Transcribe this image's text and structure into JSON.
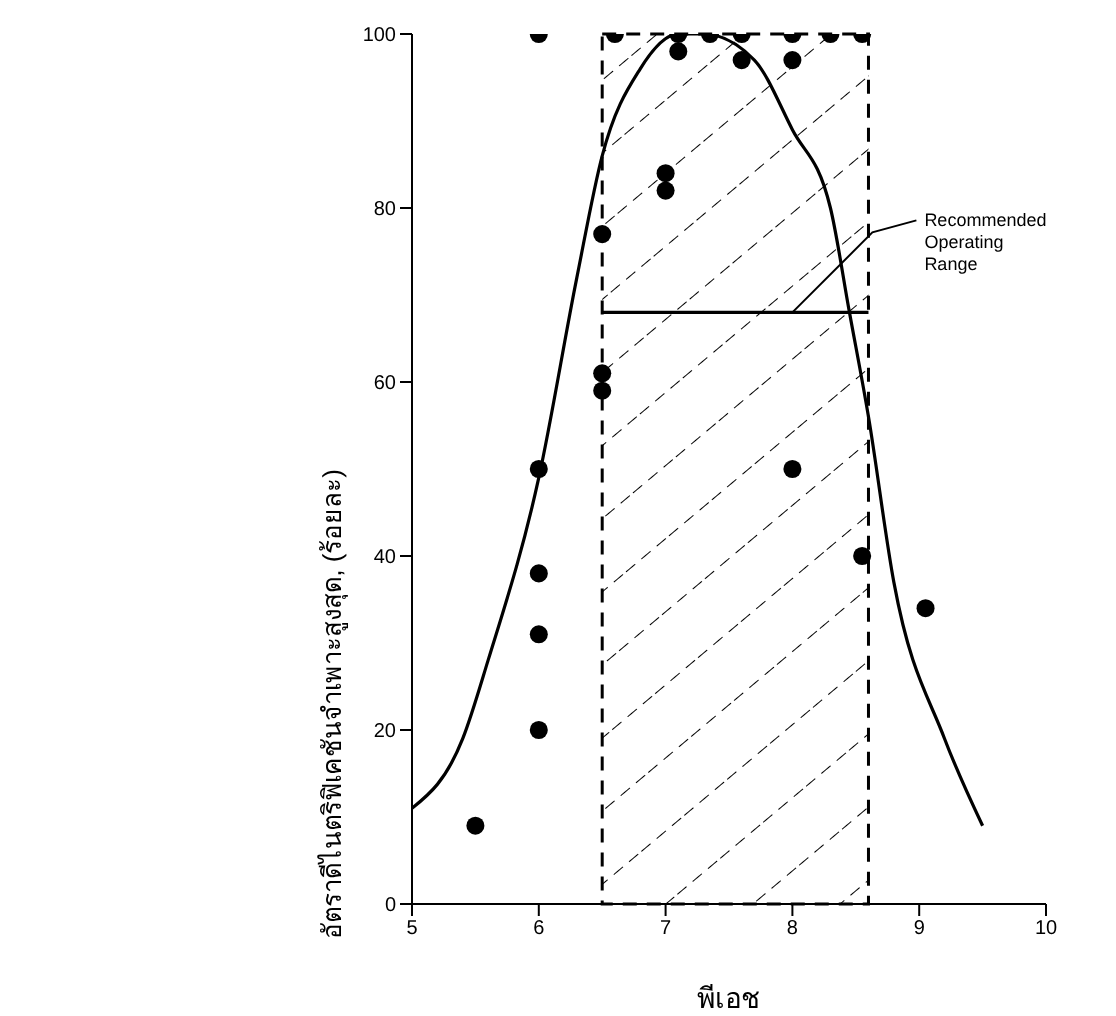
{
  "chart_data": {
    "type": "scatter",
    "xlabel": "พีเอช",
    "ylabel": "อัตราดีไนตริฟิเคชันจำเพาะสูงสุด, (ร้อยละ)",
    "xlim": [
      5,
      10
    ],
    "ylim": [
      0,
      100
    ],
    "xticks": [
      5,
      6,
      7,
      8,
      9,
      10
    ],
    "yticks": [
      0,
      20,
      40,
      60,
      80,
      100
    ],
    "series": [
      {
        "color": "#000000",
        "marker": "circle",
        "x": [
          5.5,
          6,
          6,
          6,
          6,
          6,
          6.5,
          6.5,
          6.5,
          6.6,
          7,
          7,
          7.1,
          7.1,
          7.35,
          7.6,
          7.6,
          8,
          8,
          8,
          8.3,
          8.55,
          8.55,
          9.05
        ],
        "values": [
          9,
          100,
          50,
          38,
          31,
          20,
          77,
          61,
          59,
          100,
          84,
          82,
          100,
          98,
          100,
          100,
          97,
          100,
          97,
          50,
          100,
          100,
          40,
          34
        ]
      },
      {
        "type": "line",
        "color": "#000000",
        "marker": "none",
        "line_style": "solid",
        "x": [
          5,
          5.4,
          5.6,
          6,
          6.3,
          6.5,
          6.8,
          7.1,
          7.3,
          7.7,
          8.0,
          8.3,
          8.45,
          8.6,
          8.8,
          9.2,
          9.5
        ],
        "values": [
          11,
          19,
          28,
          49,
          72,
          86,
          96,
          100,
          100,
          97,
          89,
          80,
          68,
          56,
          37,
          19,
          9
        ]
      },
      {
        "type": "line",
        "color": "#000000",
        "marker": "none",
        "line_style": "solid",
        "x": [
          6.5,
          8.6
        ],
        "values": [
          68,
          68
        ]
      }
    ],
    "bands": [
      {
        "axis": "x",
        "from": 6.5,
        "to": 8.6,
        "color": "#000000"
      }
    ],
    "annotations": [
      {
        "text": "Recommended Operating Range",
        "x": 8,
        "y": 68
      }
    ]
  }
}
